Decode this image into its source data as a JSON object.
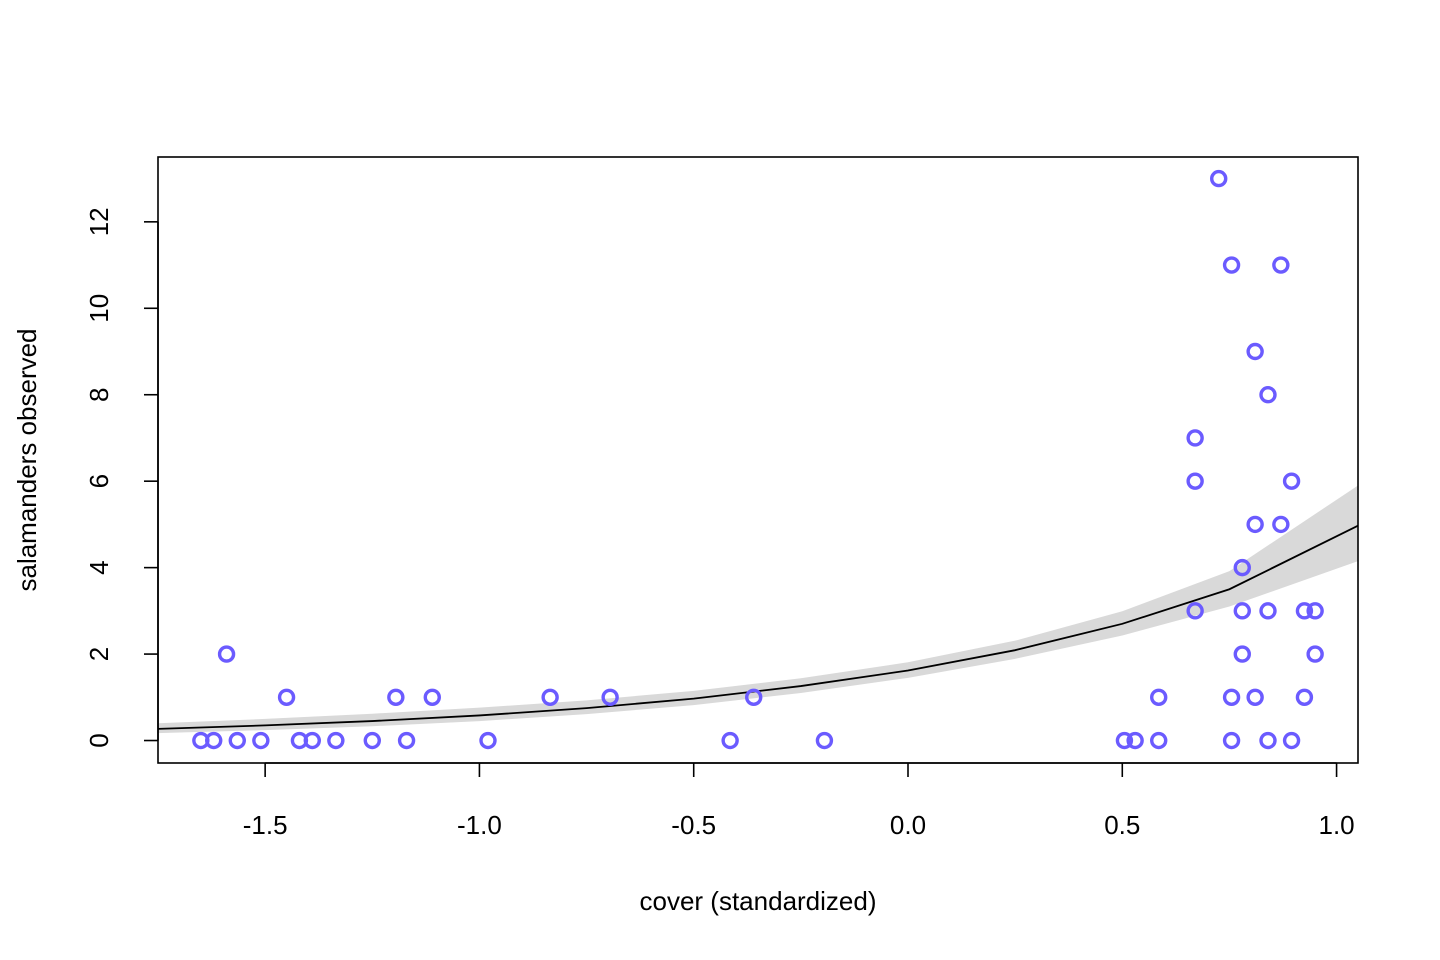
{
  "chart_data": {
    "type": "scatter",
    "title": "",
    "xlabel": "cover (standardized)",
    "ylabel": "salamanders observed",
    "xlim": [
      -1.75,
      1.05
    ],
    "ylim": [
      -0.52,
      13.5
    ],
    "x_ticks": [
      -1.5,
      -1.0,
      -0.5,
      0.0,
      0.5,
      1.0
    ],
    "x_tick_labels": [
      "-1.5",
      "-1.0",
      "-0.5",
      "0.0",
      "0.5",
      "1.0"
    ],
    "y_ticks": [
      0,
      2,
      4,
      6,
      8,
      10,
      12
    ],
    "y_tick_labels": [
      "0",
      "2",
      "4",
      "6",
      "8",
      "10",
      "12"
    ],
    "grid": false,
    "legend": "none",
    "colors": {
      "points": "#6b5bff",
      "band": "#d9d9d9",
      "line": "#000000",
      "frame": "#000000"
    },
    "series": [
      {
        "type": "scatter",
        "points": [
          [
            -1.65,
            0
          ],
          [
            -1.62,
            0
          ],
          [
            -1.565,
            0
          ],
          [
            -1.51,
            0
          ],
          [
            -1.42,
            0
          ],
          [
            -1.39,
            0
          ],
          [
            -1.335,
            0
          ],
          [
            -1.25,
            0
          ],
          [
            -1.17,
            0
          ],
          [
            -0.98,
            0
          ],
          [
            -0.415,
            0
          ],
          [
            -0.195,
            0
          ],
          [
            0.505,
            0
          ],
          [
            0.53,
            0
          ],
          [
            0.585,
            0
          ],
          [
            0.755,
            0
          ],
          [
            0.84,
            0
          ],
          [
            0.895,
            0
          ],
          [
            -1.59,
            2
          ],
          [
            -1.45,
            1
          ],
          [
            -1.195,
            1
          ],
          [
            -1.11,
            1
          ],
          [
            -0.835,
            1
          ],
          [
            -0.695,
            1
          ],
          [
            -0.36,
            1
          ],
          [
            0.585,
            1
          ],
          [
            0.755,
            1
          ],
          [
            0.81,
            1
          ],
          [
            0.925,
            1
          ],
          [
            0.67,
            3
          ],
          [
            0.67,
            6
          ],
          [
            0.67,
            7
          ],
          [
            0.725,
            13
          ],
          [
            0.755,
            11
          ],
          [
            0.78,
            4
          ],
          [
            0.78,
            3
          ],
          [
            0.78,
            2
          ],
          [
            0.81,
            9
          ],
          [
            0.81,
            5
          ],
          [
            0.84,
            8
          ],
          [
            0.84,
            3
          ],
          [
            0.87,
            11
          ],
          [
            0.87,
            5
          ],
          [
            0.895,
            6
          ],
          [
            0.925,
            3
          ],
          [
            0.95,
            3
          ],
          [
            0.95,
            2
          ]
        ]
      },
      {
        "type": "line",
        "x": [
          -1.75,
          -1.5,
          -1.25,
          -1.0,
          -0.75,
          -0.5,
          -0.25,
          0.0,
          0.25,
          0.5,
          0.75,
          1.05
        ],
        "y": [
          0.27,
          0.35,
          0.45,
          0.58,
          0.75,
          0.97,
          1.26,
          1.62,
          2.09,
          2.7,
          3.5,
          4.97
        ]
      },
      {
        "type": "area",
        "x": [
          -1.75,
          -1.5,
          -1.25,
          -1.0,
          -0.75,
          -0.5,
          -0.25,
          0.0,
          0.25,
          0.5,
          0.75,
          1.05
        ],
        "lower": [
          0.17,
          0.24,
          0.33,
          0.45,
          0.61,
          0.82,
          1.1,
          1.45,
          1.89,
          2.43,
          3.1,
          4.15
        ],
        "upper": [
          0.4,
          0.5,
          0.62,
          0.76,
          0.93,
          1.15,
          1.44,
          1.81,
          2.31,
          2.99,
          3.92,
          5.9
        ]
      }
    ]
  }
}
